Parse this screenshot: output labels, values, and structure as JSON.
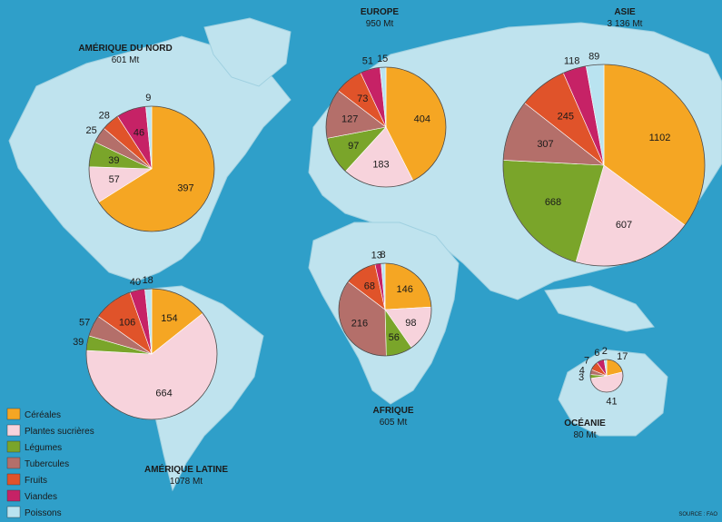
{
  "chart_data": {
    "type": "pie",
    "unit": "Mt",
    "categories": [
      "Céréales",
      "Plantes sucrières",
      "Légumes",
      "Tubercules",
      "Fruits",
      "Viandes",
      "Poissons"
    ],
    "colors": {
      "Céréales": "#f5a623",
      "Plantes sucrières": "#f7d3dc",
      "Légumes": "#7aa52a",
      "Tubercules": "#b46f6a",
      "Fruits": "#e0532a",
      "Viandes": "#c62266",
      "Poissons": "#b9e3f0"
    },
    "regions": [
      {
        "id": "amerique-nord",
        "name": "AMÉRIQUE DU NORD",
        "total": "601 Mt",
        "values": [
          397,
          57,
          39,
          25,
          28,
          46,
          9
        ]
      },
      {
        "id": "amerique-latine",
        "name": "AMÉRIQUE LATINE",
        "total": "1078 Mt",
        "values": [
          154,
          664,
          39,
          57,
          106,
          40,
          18
        ]
      },
      {
        "id": "europe",
        "name": "EUROPE",
        "total": "950 Mt",
        "values": [
          404,
          183,
          97,
          127,
          73,
          51,
          15
        ]
      },
      {
        "id": "afrique",
        "name": "AFRIQUE",
        "total": "605 Mt",
        "values": [
          146,
          98,
          56,
          216,
          68,
          13,
          8
        ]
      },
      {
        "id": "asie",
        "name": "ASIE",
        "total": "3 136 Mt",
        "values": [
          1102,
          607,
          668,
          307,
          245,
          118,
          89
        ]
      },
      {
        "id": "oceanie",
        "name": "OCÉANIE",
        "total": "80 Mt",
        "values": [
          17,
          41,
          3,
          4,
          7,
          6,
          2
        ]
      }
    ]
  },
  "legend": {
    "items": [
      "Céréales",
      "Plantes sucrières",
      "Légumes",
      "Tubercules",
      "Fruits",
      "Viandes",
      "Poissons"
    ]
  },
  "source": "SOURCE : FAO"
}
